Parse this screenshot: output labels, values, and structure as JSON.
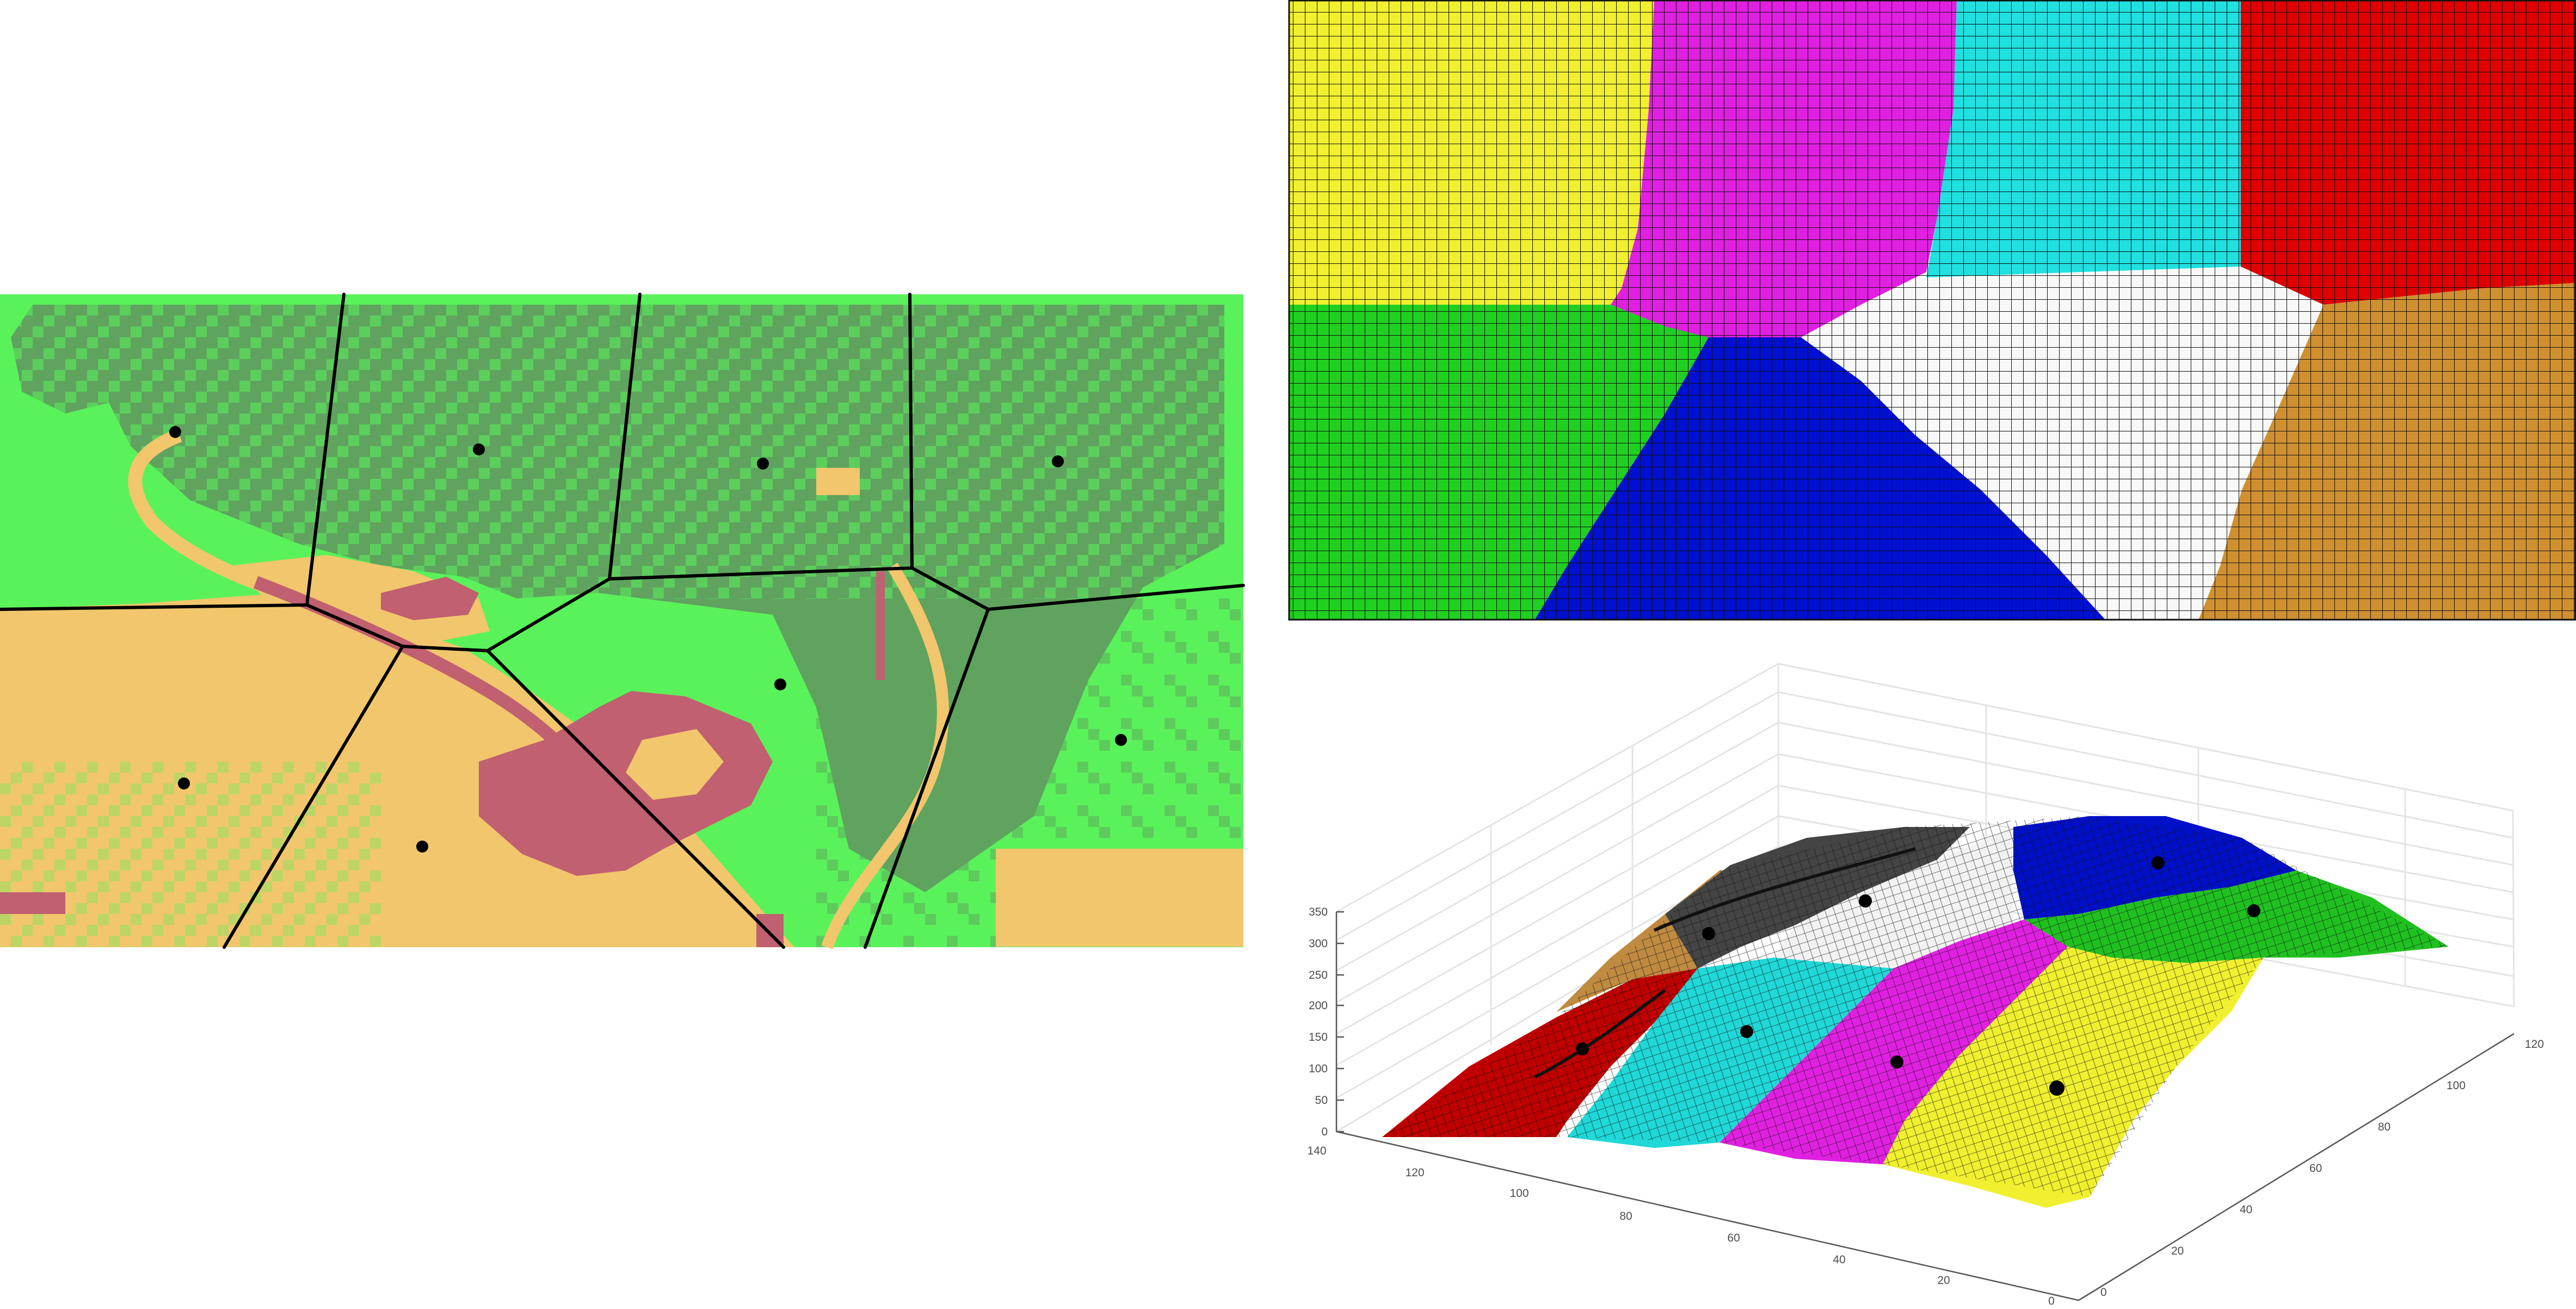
{
  "colors": {
    "land_dark_green": "#5fa35f",
    "land_light_green": "#5af25a",
    "land_sand": "#f2c66c",
    "land_mauve": "#c06070",
    "region_yellow": "#f0f030",
    "region_magenta": "#e020e0",
    "region_cyan": "#20e0e0",
    "region_red": "#e00000",
    "region_green": "#20d020",
    "region_blue": "#0010d0",
    "region_white": "#f8f8f8",
    "region_orange": "#d09030",
    "grid_line": "#111111",
    "site_point": "#000000"
  },
  "left_map": {
    "panel": "land-cover-voronoi-map",
    "site_count": 8
  },
  "top_right_map": {
    "panel": "region-partition-grid",
    "regions": [
      "yellow",
      "magenta",
      "cyan",
      "red",
      "green",
      "blue",
      "white",
      "orange"
    ]
  },
  "surface_plot": {
    "panel": "3d-surface-partition",
    "z_ticks": [
      "0",
      "50",
      "100",
      "150",
      "200",
      "250",
      "300",
      "350"
    ],
    "x_ticks": [
      "140",
      "120",
      "100",
      "80",
      "60",
      "40",
      "20",
      "0"
    ],
    "y_ticks": [
      "0",
      "20",
      "40",
      "60",
      "80",
      "100",
      "120"
    ]
  }
}
